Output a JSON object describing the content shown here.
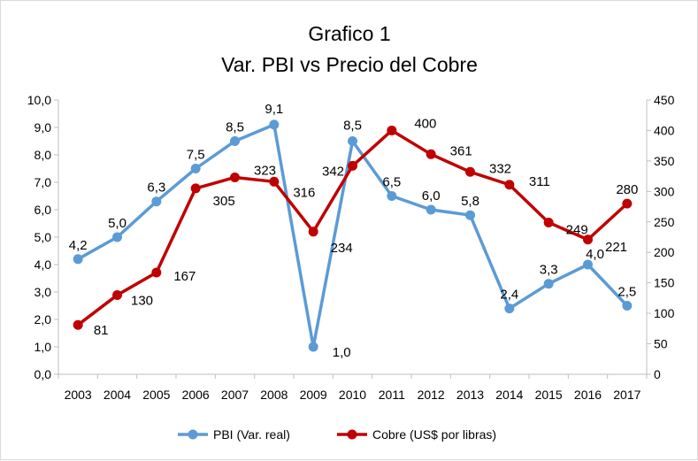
{
  "chart_data": {
    "type": "line",
    "title": "Grafico 1",
    "subtitle": "Var. PBI vs Precio del Cobre",
    "categories": [
      "2003",
      "2004",
      "2005",
      "2006",
      "2007",
      "2008",
      "2009",
      "2010",
      "2011",
      "2012",
      "2013",
      "2014",
      "2015",
      "2016",
      "2017"
    ],
    "y_left": {
      "min": 0,
      "max": 10,
      "step": 1,
      "tick_labels": [
        "0,0",
        "1,0",
        "2,0",
        "3,0",
        "4,0",
        "5,0",
        "6,0",
        "7,0",
        "8,0",
        "9,0",
        "10,0"
      ]
    },
    "y_right": {
      "min": 0,
      "max": 450,
      "step": 50,
      "tick_labels": [
        "0",
        "50",
        "100",
        "150",
        "200",
        "250",
        "300",
        "350",
        "400",
        "450"
      ]
    },
    "grid": false,
    "legend_position": "bottom",
    "series": [
      {
        "name": "PBI (Var. real)",
        "axis": "left",
        "color": "#5b9bd5",
        "values": [
          4.2,
          5.0,
          6.3,
          7.5,
          8.5,
          9.1,
          1.0,
          8.5,
          6.5,
          6.0,
          5.8,
          2.4,
          3.3,
          4.0,
          2.5
        ],
        "data_labels": [
          "4,2",
          "5,0",
          "6,3",
          "7,5",
          "8,5",
          "9,1",
          "1,0",
          "8,5",
          "6,5",
          "6,0",
          "5,8",
          "2,4",
          "3,3",
          "4,0",
          "2,5"
        ]
      },
      {
        "name": "Cobre (US$ por libras)",
        "axis": "right",
        "color": "#c00000",
        "values": [
          81,
          130,
          167,
          305,
          323,
          316,
          234,
          342,
          400,
          361,
          332,
          311,
          249,
          221,
          280
        ],
        "data_labels": [
          "81",
          "130",
          "167",
          "305",
          "323",
          "316",
          "234",
          "342",
          "400",
          "361",
          "332",
          "311",
          "249",
          "221",
          "280"
        ]
      }
    ]
  }
}
